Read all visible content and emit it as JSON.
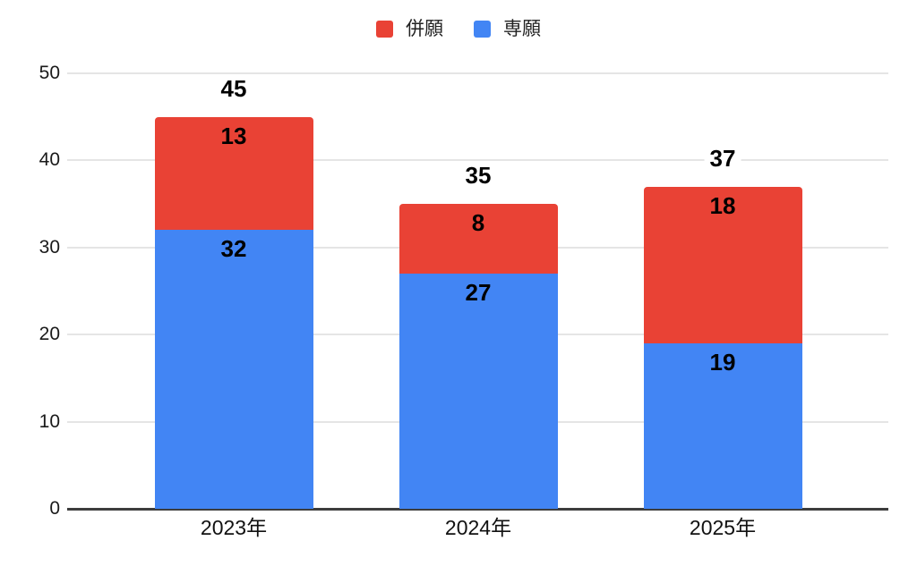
{
  "chart_data": {
    "type": "bar",
    "stacked": true,
    "title": "",
    "categories": [
      "2023年",
      "2024年",
      "2025年"
    ],
    "series": [
      {
        "name": "専願",
        "color": "#4285F4",
        "values": [
          32,
          27,
          19
        ]
      },
      {
        "name": "併願",
        "color": "#E94235",
        "values": [
          13,
          8,
          18
        ]
      }
    ],
    "totals": [
      45,
      35,
      37
    ],
    "ylim": [
      0,
      50
    ],
    "yticks": [
      0,
      10,
      20,
      30,
      40,
      50
    ],
    "grid": true,
    "legend": {
      "position": "top",
      "items": [
        {
          "label": "併願",
          "color": "#E94235"
        },
        {
          "label": "専願",
          "color": "#4285F4"
        }
      ]
    }
  },
  "colors": {
    "series_red": "#E94235",
    "series_blue": "#4285F4",
    "gridline": "#E5E5E5",
    "baseline": "#3D3D3D",
    "label_text": "#000000",
    "axis_text": "#1A1A1A",
    "background": "#FFFFFF"
  }
}
